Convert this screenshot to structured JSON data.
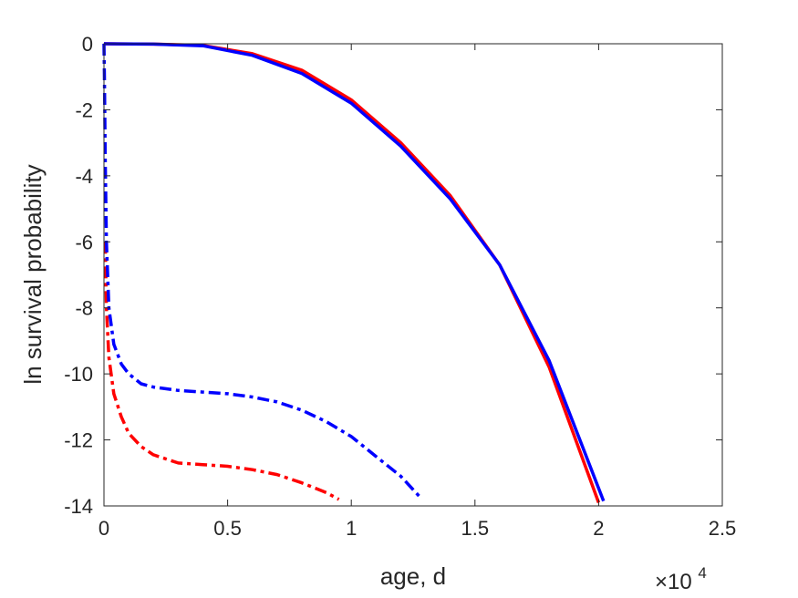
{
  "chart_data": {
    "type": "line",
    "xlabel": "age, d",
    "ylabel": "ln survival probability",
    "x_multiplier_label": {
      "base": "×10",
      "exponent": "4"
    },
    "xlim": [
      0,
      2.5
    ],
    "ylim": [
      -14,
      0
    ],
    "x_ticks": [
      "0",
      "0.5",
      "1",
      "1.5",
      "2",
      "2.5"
    ],
    "y_ticks": [
      "0",
      "-2",
      "-4",
      "-6",
      "-8",
      "-10",
      "-12",
      "-14"
    ],
    "grid": false,
    "legend": "none",
    "series": [
      {
        "color": "#ff0000",
        "style": "solid",
        "x": [
          0.0,
          0.2,
          0.4,
          0.6,
          0.8,
          1.0,
          1.2,
          1.4,
          1.6,
          1.8,
          2.0
        ],
        "y": [
          0.0,
          -0.01,
          -0.05,
          -0.3,
          -0.8,
          -1.7,
          -3.0,
          -4.6,
          -6.7,
          -9.8,
          -13.9
        ]
      },
      {
        "color": "#0000ff",
        "style": "solid",
        "x": [
          0.0,
          0.2,
          0.4,
          0.6,
          0.8,
          1.0,
          1.2,
          1.4,
          1.6,
          1.8,
          2.02
        ],
        "y": [
          0.0,
          -0.01,
          -0.06,
          -0.35,
          -0.9,
          -1.8,
          -3.1,
          -4.7,
          -6.7,
          -9.6,
          -13.85
        ]
      },
      {
        "color": "#ff0000",
        "style": "dashdot",
        "x": [
          0.005,
          0.01,
          0.02,
          0.04,
          0.07,
          0.1,
          0.15,
          0.2,
          0.3,
          0.4,
          0.5,
          0.6,
          0.7,
          0.8,
          0.9,
          0.95
        ],
        "y": [
          -6.0,
          -8.0,
          -9.5,
          -10.6,
          -11.3,
          -11.8,
          -12.2,
          -12.45,
          -12.7,
          -12.75,
          -12.8,
          -12.9,
          -13.05,
          -13.3,
          -13.6,
          -13.8
        ]
      },
      {
        "color": "#0000ff",
        "style": "dashdot",
        "x": [
          0.0,
          0.002,
          0.005,
          0.01,
          0.02,
          0.04,
          0.07,
          0.1,
          0.15,
          0.2,
          0.3,
          0.4,
          0.5,
          0.6,
          0.7,
          0.8,
          0.9,
          1.0,
          1.1,
          1.2,
          1.28
        ],
        "y": [
          0.0,
          -1.0,
          -3.5,
          -6.0,
          -8.0,
          -9.1,
          -9.7,
          -10.0,
          -10.3,
          -10.4,
          -10.5,
          -10.55,
          -10.6,
          -10.7,
          -10.85,
          -11.1,
          -11.45,
          -11.9,
          -12.5,
          -13.1,
          -13.75
        ]
      }
    ]
  }
}
